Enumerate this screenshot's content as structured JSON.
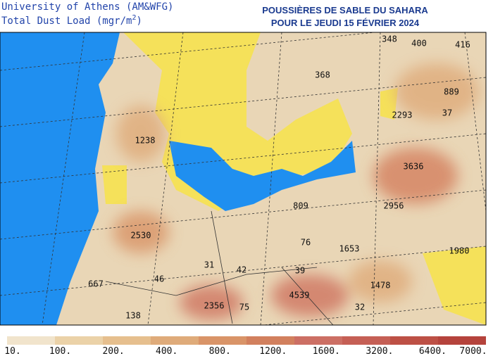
{
  "header": {
    "source": "University of Athens (AM&WFG)",
    "product": "Total Dust Load (mgr/m",
    "product_sup": "2",
    "product_end": ")",
    "title_line1": "POUSSIÈRES DE SABLE DU SAHARA",
    "title_line2": "POUR LE JEUDI 15 FÉVRIER 2024"
  },
  "map": {
    "labels": [
      "348",
      "400",
      "416",
      "368",
      "889",
      "2293",
      "37",
      "1238",
      "3636",
      "2956",
      "809",
      "2530",
      "76",
      "1653",
      "1980",
      "31",
      "42",
      "39",
      "46",
      "667",
      "1478",
      "4539",
      "2356",
      "75",
      "32",
      "138"
    ]
  },
  "colorbar": {
    "colors": [
      "#f1e4cc",
      "#ebd2a8",
      "#e6bf8e",
      "#dfab7a",
      "#d99468",
      "#d2805e",
      "#cc6f64",
      "#c55f55",
      "#bd5045",
      "#b5433c"
    ],
    "labels": [
      "10.",
      "100.",
      "200.",
      "400.",
      "800.",
      "1200.",
      "1600.",
      "3200.",
      "6400.",
      "7000."
    ]
  }
}
